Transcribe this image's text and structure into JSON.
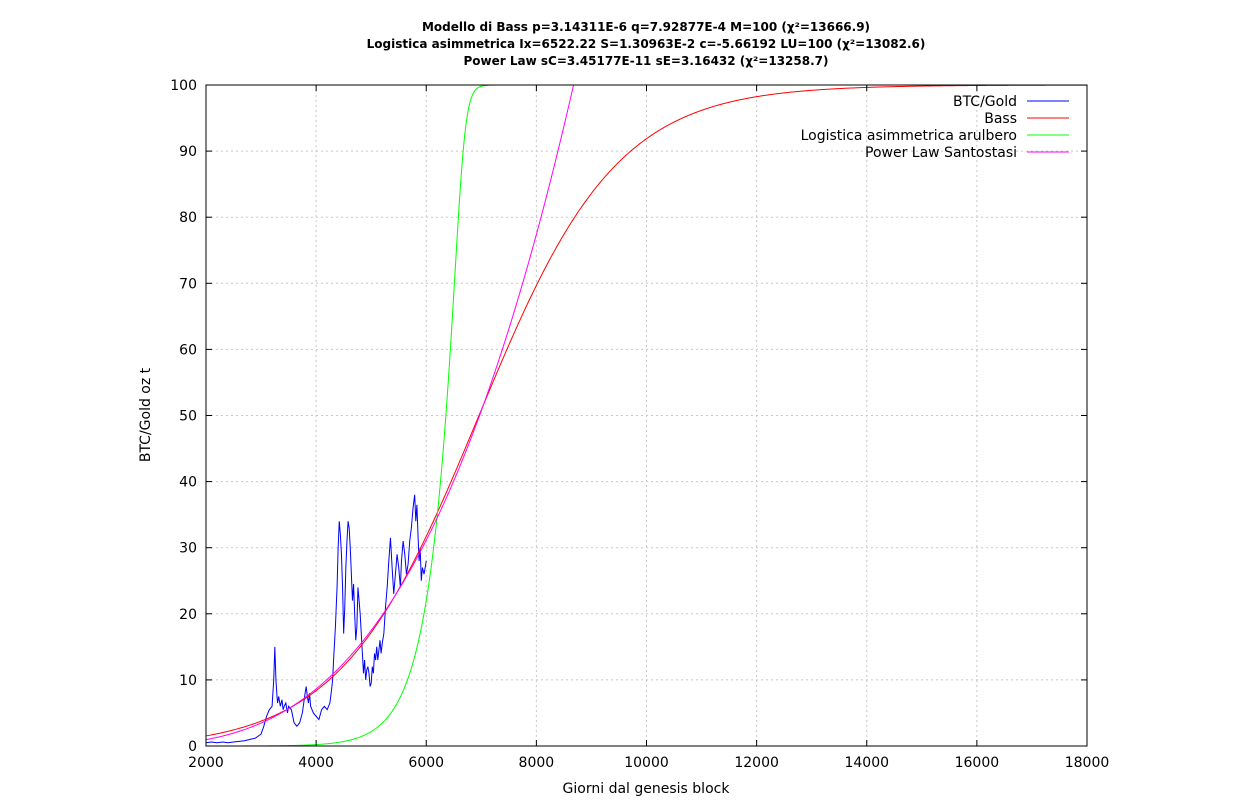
{
  "chart_data": {
    "type": "line",
    "title_lines": [
      "Modello di Bass p=3.14311E-6 q=7.92877E-4 M=100 (χ²=13666.9)",
      "Logistica asimmetrica Ix=6522.22 S=1.30963E-2 c=-5.66192 LU=100 (χ²=13082.6)",
      "Power Law sC=3.45177E-11 sE=3.16432 (χ²=13258.7)"
    ],
    "xlabel": "Giorni dal genesis block",
    "ylabel": "BTC/Gold oz t",
    "xlim": [
      2000,
      18000
    ],
    "ylim": [
      0,
      100
    ],
    "xticks": [
      2000,
      4000,
      6000,
      8000,
      10000,
      12000,
      14000,
      16000,
      18000
    ],
    "yticks": [
      0,
      10,
      20,
      30,
      40,
      50,
      60,
      70,
      80,
      90,
      100
    ],
    "grid": true,
    "legend_position": "top-right",
    "series": [
      {
        "name": "BTC/Gold",
        "color": "#0000ff",
        "x": [
          2000,
          2100,
          2200,
          2300,
          2400,
          2500,
          2600,
          2700,
          2800,
          2900,
          3000,
          3050,
          3100,
          3150,
          3200,
          3230,
          3250,
          3270,
          3290,
          3300,
          3320,
          3350,
          3380,
          3400,
          3420,
          3450,
          3480,
          3500,
          3550,
          3600,
          3650,
          3700,
          3750,
          3800,
          3820,
          3840,
          3860,
          3880,
          3900,
          3950,
          4000,
          4050,
          4100,
          4150,
          4200,
          4250,
          4280,
          4300,
          4320,
          4350,
          4380,
          4400,
          4420,
          4440,
          4460,
          4480,
          4500,
          4520,
          4540,
          4560,
          4580,
          4600,
          4620,
          4640,
          4660,
          4680,
          4700,
          4720,
          4740,
          4760,
          4780,
          4800,
          4820,
          4840,
          4860,
          4880,
          4900,
          4920,
          4940,
          4960,
          4980,
          5000,
          5020,
          5040,
          5060,
          5080,
          5100,
          5120,
          5140,
          5160,
          5180,
          5200,
          5230,
          5260,
          5290,
          5320,
          5350,
          5380,
          5410,
          5440,
          5470,
          5500,
          5530,
          5550,
          5580,
          5610,
          5640,
          5670,
          5700,
          5730,
          5760,
          5790,
          5810,
          5830,
          5850,
          5870,
          5890,
          5910,
          5930,
          5960,
          5980,
          6000
        ],
        "values": [
          0.5,
          0.6,
          0.5,
          0.6,
          0.5,
          0.6,
          0.7,
          0.8,
          1.0,
          1.2,
          1.8,
          3.0,
          4.5,
          5.5,
          6.0,
          10.0,
          15.0,
          10.0,
          7.5,
          6.5,
          7.5,
          6.0,
          7.0,
          5.5,
          6.0,
          6.5,
          5.0,
          6.0,
          5.5,
          3.5,
          3.0,
          3.5,
          5.0,
          8.0,
          9.0,
          7.5,
          6.5,
          8.0,
          6.0,
          5.0,
          4.5,
          4.0,
          5.5,
          6.0,
          5.5,
          6.5,
          8.5,
          10.0,
          13.5,
          18.0,
          24.0,
          30.0,
          34.0,
          32.0,
          29.0,
          24.0,
          17.0,
          21.0,
          27.0,
          31.0,
          34.0,
          33.0,
          30.0,
          26.0,
          22.0,
          24.5,
          20.0,
          16.0,
          18.0,
          24.0,
          22.0,
          20.0,
          17.0,
          14.0,
          11.0,
          13.0,
          10.0,
          11.5,
          12.0,
          11.0,
          9.0,
          9.5,
          12.0,
          11.0,
          14.0,
          13.0,
          15.0,
          13.0,
          14.5,
          16.0,
          14.0,
          15.5,
          17.0,
          21.0,
          24.0,
          28.0,
          31.5,
          27.0,
          23.0,
          26.0,
          29.0,
          27.0,
          24.0,
          28.0,
          31.0,
          29.0,
          26.0,
          27.5,
          31.0,
          33.0,
          36.0,
          38.0,
          34.0,
          36.5,
          32.0,
          28.0,
          30.0,
          25.0,
          27.0,
          26.0,
          27.0,
          28.0
        ]
      },
      {
        "name": "Bass",
        "color": "#ff0000",
        "model": "bass",
        "params": {
          "p": 3.14311e-06,
          "q": 0.000792877,
          "M": 100
        }
      },
      {
        "name": "Logistica asimmetrica arulbero",
        "color": "#00ff00",
        "model": "richards",
        "params": {
          "Ix": 6522.22,
          "S": 0.0130963,
          "c": -5.66192,
          "LU": 100
        }
      },
      {
        "name": "Power Law Santostasi",
        "color": "#ff00ff",
        "model": "powerlaw",
        "params": {
          "sC": 3.45177e-11,
          "sE": 3.16432
        }
      }
    ]
  }
}
